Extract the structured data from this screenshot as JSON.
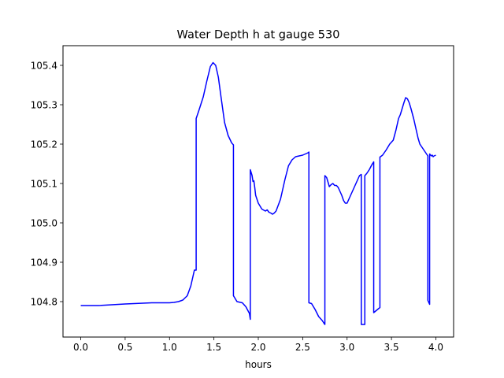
{
  "chart_data": {
    "type": "line",
    "title": "Water Depth h at gauge 530",
    "xlabel": "hours",
    "ylabel": "",
    "xlim": [
      -0.2,
      4.2
    ],
    "ylim": [
      104.71,
      105.45
    ],
    "x_ticks": [
      0.0,
      0.5,
      1.0,
      1.5,
      2.0,
      2.5,
      3.0,
      3.5,
      4.0
    ],
    "x_tick_labels": [
      "0.0",
      "0.5",
      "1.0",
      "1.5",
      "2.0",
      "2.5",
      "3.0",
      "3.5",
      "4.0"
    ],
    "y_ticks": [
      104.8,
      104.9,
      105.0,
      105.1,
      105.2,
      105.3,
      105.4
    ],
    "y_tick_labels": [
      "104.8",
      "104.9",
      "105.0",
      "105.1",
      "105.2",
      "105.3",
      "105.4"
    ],
    "grid": false,
    "legend": "none",
    "series": [
      {
        "color": "#0000ff",
        "x": [
          0.0,
          0.2,
          0.5,
          0.8,
          1.0,
          1.05,
          1.1,
          1.15,
          1.2,
          1.24,
          1.28,
          1.3,
          1.3,
          1.33,
          1.38,
          1.42,
          1.46,
          1.49,
          1.52,
          1.55,
          1.58,
          1.62,
          1.66,
          1.7,
          1.72,
          1.72,
          1.76,
          1.82,
          1.86,
          1.9,
          1.91,
          1.91,
          1.93,
          1.94,
          1.95,
          1.96,
          1.97,
          2.0,
          2.04,
          2.08,
          2.1,
          2.12,
          2.14,
          2.16,
          2.18,
          2.2,
          2.25,
          2.3,
          2.34,
          2.38,
          2.42,
          2.46,
          2.5,
          2.53,
          2.56,
          2.57,
          2.57,
          2.6,
          2.64,
          2.68,
          2.72,
          2.74,
          2.75,
          2.75,
          2.77,
          2.79,
          2.8,
          2.82,
          2.84,
          2.86,
          2.88,
          2.9,
          2.92,
          2.94,
          2.96,
          2.98,
          3.0,
          3.02,
          3.05,
          3.08,
          3.12,
          3.14,
          3.16,
          3.16,
          3.2,
          3.2,
          3.22,
          3.25,
          3.28,
          3.3,
          3.3,
          3.37,
          3.37,
          3.4,
          3.44,
          3.48,
          3.52,
          3.55,
          3.58,
          3.6,
          3.62,
          3.64,
          3.66,
          3.68,
          3.7,
          3.72,
          3.75,
          3.78,
          3.8,
          3.82,
          3.85,
          3.88,
          3.91,
          3.91,
          3.93,
          3.93,
          3.95,
          3.96,
          3.97,
          3.98,
          4.0
        ],
        "y": [
          104.79,
          104.79,
          104.794,
          104.797,
          104.797,
          104.798,
          104.8,
          104.804,
          104.815,
          104.84,
          104.88,
          104.88,
          105.265,
          105.285,
          105.32,
          105.36,
          105.397,
          105.407,
          105.4,
          105.37,
          105.32,
          105.255,
          105.222,
          105.203,
          105.198,
          104.815,
          104.8,
          104.797,
          104.787,
          104.77,
          104.755,
          105.135,
          105.12,
          105.105,
          105.107,
          105.09,
          105.07,
          105.05,
          105.035,
          105.03,
          105.033,
          105.027,
          105.025,
          105.022,
          105.025,
          105.03,
          105.06,
          105.11,
          105.145,
          105.16,
          105.168,
          105.17,
          105.172,
          105.175,
          105.178,
          105.18,
          104.797,
          104.795,
          104.78,
          104.762,
          104.752,
          104.745,
          104.742,
          105.12,
          105.115,
          105.1,
          105.092,
          105.097,
          105.1,
          105.095,
          105.095,
          105.09,
          105.08,
          105.07,
          105.057,
          105.05,
          105.05,
          105.06,
          105.075,
          105.09,
          105.11,
          105.12,
          105.123,
          104.742,
          104.742,
          105.12,
          105.125,
          105.135,
          105.148,
          105.155,
          104.772,
          104.785,
          105.167,
          105.172,
          105.185,
          105.2,
          105.21,
          105.235,
          105.265,
          105.275,
          105.29,
          105.305,
          105.318,
          105.315,
          105.305,
          105.29,
          105.265,
          105.235,
          105.215,
          105.2,
          105.19,
          105.18,
          105.17,
          104.803,
          104.793,
          105.175,
          105.17,
          105.172,
          105.168,
          105.17,
          105.172
        ]
      }
    ]
  }
}
